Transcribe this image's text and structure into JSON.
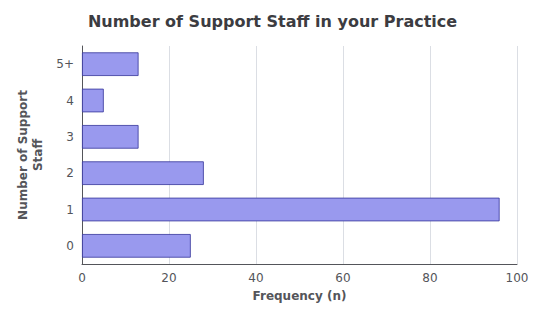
{
  "chart_data": {
    "type": "bar",
    "orientation": "horizontal",
    "title": "Number of Support Staff in your Practice",
    "categories": [
      "0",
      "1",
      "2",
      "3",
      "4",
      "5+"
    ],
    "values": [
      25,
      96,
      28,
      13,
      5,
      13
    ],
    "color": "#9999ee",
    "xlabel": "Frequency (n)",
    "ylabel": "Number of Support\nStaff",
    "xlim": [
      0,
      100
    ],
    "xticks": [
      0,
      20,
      40,
      60,
      80,
      100
    ],
    "grid": true
  }
}
